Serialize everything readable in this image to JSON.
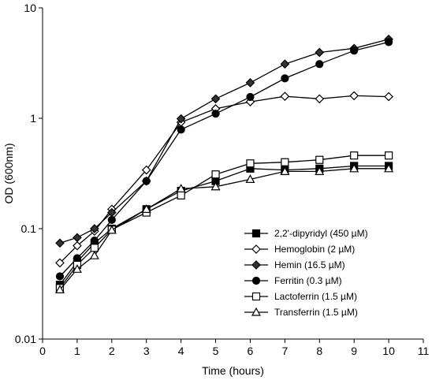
{
  "chart_data": {
    "type": "line",
    "title": "",
    "xlabel": "Time (hours)",
    "ylabel": "OD (600nm)",
    "xlim": [
      0,
      11
    ],
    "ylim": [
      0.01,
      10
    ],
    "yscale": "log",
    "x_ticks": [
      0,
      1,
      2,
      3,
      4,
      5,
      6,
      7,
      8,
      9,
      10,
      11
    ],
    "y_ticks": [
      {
        "value": 0.01,
        "label": "0.01"
      },
      {
        "value": 0.1,
        "label": "0.1"
      },
      {
        "value": 1,
        "label": "1"
      },
      {
        "value": 10,
        "label": "10"
      }
    ],
    "grid": false,
    "legend_position": "bottom-right",
    "series": [
      {
        "name": "2,2'-dipyridyl (450 µM)",
        "marker": "square-filled",
        "points": [
          [
            0.5,
            0.031
          ],
          [
            1,
            0.05
          ],
          [
            1.5,
            0.074
          ],
          [
            2,
            0.1
          ],
          [
            3,
            0.15
          ],
          [
            4,
            0.22
          ],
          [
            5,
            0.27
          ],
          [
            6,
            0.35
          ],
          [
            7,
            0.34
          ],
          [
            8,
            0.35
          ],
          [
            9,
            0.37
          ],
          [
            10,
            0.37
          ]
        ]
      },
      {
        "name": "Hemoglobin (2 µM)",
        "marker": "diamond-open",
        "points": [
          [
            0.5,
            0.049
          ],
          [
            1,
            0.07
          ],
          [
            1.5,
            0.095
          ],
          [
            2,
            0.15
          ],
          [
            3,
            0.34
          ],
          [
            4,
            0.92
          ],
          [
            5,
            1.22
          ],
          [
            6,
            1.41
          ],
          [
            7,
            1.58
          ],
          [
            8,
            1.5
          ],
          [
            9,
            1.6
          ],
          [
            10,
            1.57
          ]
        ]
      },
      {
        "name": "Hemin (16.5 µM)",
        "marker": "diamond-filled",
        "points": [
          [
            0.5,
            0.074
          ],
          [
            1,
            0.083
          ],
          [
            1.5,
            0.1
          ],
          [
            2,
            0.14
          ],
          [
            3,
            0.27
          ],
          [
            4,
            0.99
          ],
          [
            5,
            1.5
          ],
          [
            6,
            2.1
          ],
          [
            7,
            3.1
          ],
          [
            8,
            3.95
          ],
          [
            9,
            4.3
          ],
          [
            10,
            5.2
          ]
        ]
      },
      {
        "name": "Ferritin (0.3 µM)",
        "marker": "circle-filled",
        "points": [
          [
            0.5,
            0.037
          ],
          [
            1,
            0.054
          ],
          [
            1.5,
            0.078
          ],
          [
            2,
            0.12
          ],
          [
            3,
            0.27
          ],
          [
            4,
            0.79
          ],
          [
            5,
            1.1
          ],
          [
            6,
            1.56
          ],
          [
            7,
            2.3
          ],
          [
            8,
            3.1
          ],
          [
            9,
            4.1
          ],
          [
            10,
            4.9
          ]
        ]
      },
      {
        "name": "Lactoferrin (1.5 µM)",
        "marker": "square-open",
        "points": [
          [
            0.5,
            0.029
          ],
          [
            1,
            0.047
          ],
          [
            1.5,
            0.067
          ],
          [
            2,
            0.098
          ],
          [
            3,
            0.14
          ],
          [
            4,
            0.2
          ],
          [
            5,
            0.31
          ],
          [
            6,
            0.39
          ],
          [
            7,
            0.4
          ],
          [
            8,
            0.42
          ],
          [
            9,
            0.46
          ],
          [
            10,
            0.46
          ]
        ]
      },
      {
        "name": "Transferrin (1.5 µM)",
        "marker": "triangle-open",
        "points": [
          [
            0.5,
            0.028
          ],
          [
            1,
            0.043
          ],
          [
            1.5,
            0.057
          ],
          [
            2,
            0.097
          ],
          [
            3,
            0.15
          ],
          [
            4,
            0.23
          ],
          [
            5,
            0.24
          ],
          [
            6,
            0.28
          ],
          [
            7,
            0.33
          ],
          [
            8,
            0.33
          ],
          [
            9,
            0.35
          ],
          [
            10,
            0.35
          ]
        ]
      }
    ]
  }
}
